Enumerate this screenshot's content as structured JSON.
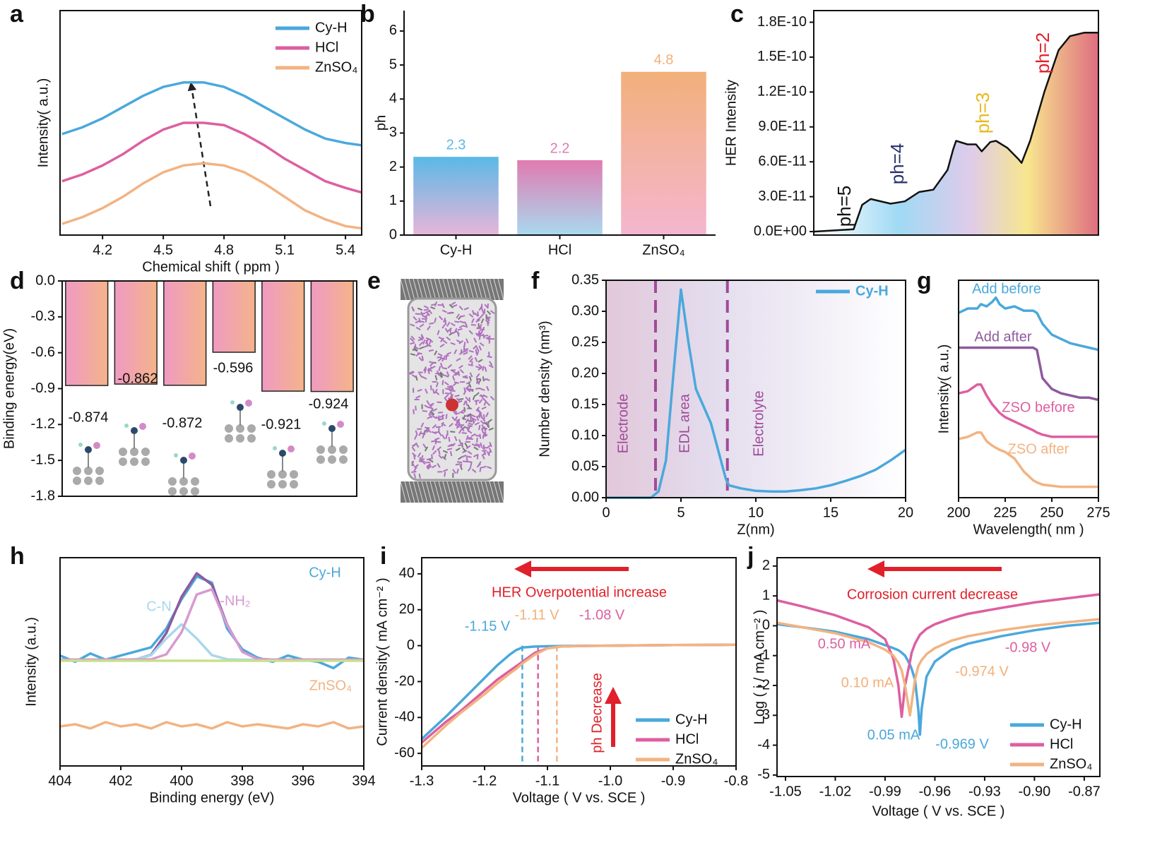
{
  "chart_data": [
    {
      "type": "line",
      "panel": "a",
      "xlabel": "Chemical shift ( ppm )",
      "ylabel": "Intensity( a.u.)",
      "xlim": [
        3.99,
        5.48
      ],
      "ylim": [
        0,
        1
      ],
      "xticks": [
        4.2,
        4.5,
        4.8,
        5.1,
        5.4
      ],
      "legend": "upper right",
      "x": [
        4.0,
        4.1,
        4.2,
        4.3,
        4.4,
        4.5,
        4.6,
        4.7,
        4.8,
        4.9,
        5.0,
        5.1,
        5.2,
        5.3,
        5.4,
        5.48
      ],
      "series": [
        {
          "name": "Cy-H",
          "color": "#4aa8dc",
          "values": [
            0.45,
            0.48,
            0.52,
            0.57,
            0.62,
            0.66,
            0.68,
            0.68,
            0.66,
            0.62,
            0.57,
            0.52,
            0.47,
            0.43,
            0.41,
            0.4
          ]
        },
        {
          "name": "HCl",
          "color": "#dd5fa0",
          "values": [
            0.24,
            0.27,
            0.31,
            0.36,
            0.42,
            0.47,
            0.5,
            0.5,
            0.49,
            0.45,
            0.4,
            0.34,
            0.29,
            0.24,
            0.21,
            0.19
          ]
        },
        {
          "name": "ZnSO₄",
          "color": "#f2b382",
          "values": [
            0.05,
            0.08,
            0.12,
            0.17,
            0.23,
            0.28,
            0.31,
            0.32,
            0.31,
            0.28,
            0.23,
            0.17,
            0.11,
            0.07,
            0.04,
            0.03
          ]
        }
      ]
    },
    {
      "type": "bar",
      "panel": "b",
      "ylabel": "ph",
      "categories": [
        "Cy-H",
        "HCl",
        "ZnSO₄"
      ],
      "values": [
        2.3,
        2.2,
        4.8
      ],
      "colors": [
        "#5bb8e6",
        "#e07bb0",
        "#f2b07a"
      ],
      "ylim": [
        0,
        6.6
      ],
      "yticks": [
        0,
        1,
        2,
        3,
        4,
        5,
        6
      ]
    },
    {
      "type": "area",
      "panel": "c",
      "ylabel": "HER Intensity",
      "xlim": [
        0,
        100
      ],
      "ylim": [
        -3e-12,
        1.9e-10
      ],
      "yticks": [
        {
          "value": 0,
          "label": "0.0E+00"
        },
        {
          "value": 3e-11,
          "label": "3.0E-11"
        },
        {
          "value": 6e-11,
          "label": "6.0E-11"
        },
        {
          "value": 9e-11,
          "label": "9.0E-11"
        },
        {
          "value": 1.2e-10,
          "label": "1.2E-10"
        },
        {
          "value": 1.5e-10,
          "label": "1.5E-10"
        },
        {
          "value": 1.8e-10,
          "label": "1.8E-10"
        }
      ],
      "x": [
        0,
        14,
        17,
        20,
        27,
        32,
        37,
        42,
        47,
        49,
        50,
        54,
        57,
        59,
        62,
        64,
        68,
        72,
        73,
        76,
        81,
        86,
        90,
        95,
        100
      ],
      "series": [
        {
          "color": "#111111",
          "values": [
            0,
            2e-12,
            2.3e-11,
            2.8e-11,
            2.4e-11,
            2.6e-11,
            3.4e-11,
            3.6e-11,
            5.3e-11,
            7.1e-11,
            7.8e-11,
            7.5e-11,
            7.5e-11,
            6.9e-11,
            7.7e-11,
            7.8e-11,
            7.2e-11,
            6.2e-11,
            5.9e-11,
            7.8e-11,
            1.2e-10,
            1.56e-10,
            1.68e-10,
            1.71e-10,
            1.71e-10
          ]
        }
      ],
      "annotations": [
        {
          "text": "ph=5",
          "color": "#111111"
        },
        {
          "text": "ph=4",
          "color": "#27306b"
        },
        {
          "text": "ph=3",
          "color": "#e8b81c"
        },
        {
          "text": "ph=2",
          "color": "#e0202a"
        }
      ]
    },
    {
      "type": "bar",
      "panel": "d",
      "ylabel": "Binding energy(eV)",
      "values": [
        -0.874,
        -0.862,
        -0.872,
        -0.596,
        -0.921,
        -0.924
      ],
      "gradient": [
        "#ef9ac2",
        "#f4b48a"
      ],
      "ylim": [
        -1.8,
        0
      ],
      "yticks": [
        {
          "value": 0,
          "label": "0.0"
        },
        -0.3,
        -0.6,
        -0.9,
        -1.2,
        -1.5,
        -1.8
      ]
    },
    {
      "type": "image",
      "panel": "e"
    },
    {
      "type": "line",
      "panel": "f",
      "xlabel": "Z(nm)",
      "ylabel": "Number density (nm³)",
      "xlim": [
        0,
        20
      ],
      "xticks": [
        0,
        5,
        10,
        15,
        20
      ],
      "ylim": [
        0,
        0.35
      ],
      "yticks": [
        {
          "value": 0,
          "label": "0.00"
        },
        0.05,
        {
          "value": 0.1,
          "label": "0.10"
        },
        0.15,
        {
          "value": 0.2,
          "label": "0.20"
        },
        0.25,
        {
          "value": 0.3,
          "label": "0.30"
        },
        0.35
      ],
      "legend": "upper right",
      "boundaries": [
        3.3,
        8.1
      ],
      "regions": [
        "Electrode",
        "EDL area",
        "Electrolyte"
      ],
      "x": [
        0,
        3,
        3.5,
        4,
        4.5,
        5,
        5.5,
        6,
        7,
        8,
        8.2,
        9,
        10,
        11,
        12,
        13,
        14,
        15,
        16,
        17,
        18,
        19,
        20
      ],
      "series": [
        {
          "name": "Cy-H",
          "color": "#4aa8dc",
          "values": [
            0,
            0,
            0.01,
            0.06,
            0.2,
            0.335,
            0.25,
            0.175,
            0.12,
            0.03,
            0.02,
            0.015,
            0.011,
            0.01,
            0.01,
            0.012,
            0.015,
            0.02,
            0.027,
            0.035,
            0.045,
            0.06,
            0.077
          ]
        }
      ]
    },
    {
      "type": "line",
      "panel": "g",
      "xlabel": "Wavelength( nm )",
      "ylabel": "Intensity( a.u.)",
      "xlim": [
        200,
        275
      ],
      "xticks": [
        200,
        225,
        250,
        275
      ],
      "ylim": [
        0,
        1
      ],
      "x": [
        200,
        205,
        210,
        212,
        215,
        218,
        220,
        222,
        225,
        230,
        235,
        240,
        242,
        245,
        250,
        255,
        260,
        265,
        270,
        275
      ],
      "series": [
        {
          "name": "Add before",
          "color": "#4aa8dc",
          "values": [
            0.85,
            0.87,
            0.87,
            0.89,
            0.88,
            0.9,
            0.92,
            0.89,
            0.87,
            0.88,
            0.86,
            0.86,
            0.85,
            0.8,
            0.75,
            0.73,
            0.71,
            0.7,
            0.69,
            0.68
          ]
        },
        {
          "name": "Add after",
          "color": "#8e5a9e",
          "values": [
            0.69,
            0.69,
            0.69,
            0.69,
            0.69,
            0.69,
            0.69,
            0.69,
            0.69,
            0.69,
            0.69,
            0.69,
            0.68,
            0.55,
            0.5,
            0.48,
            0.47,
            0.46,
            0.46,
            0.45
          ]
        },
        {
          "name": "ZSO before",
          "color": "#dd5fa0",
          "values": [
            0.48,
            0.49,
            0.52,
            0.52,
            0.47,
            0.43,
            0.41,
            0.39,
            0.37,
            0.35,
            0.33,
            0.31,
            0.3,
            0.29,
            0.28,
            0.28,
            0.28,
            0.28,
            0.28,
            0.28
          ]
        },
        {
          "name": "ZSO after",
          "color": "#f2b382",
          "values": [
            0.27,
            0.28,
            0.3,
            0.3,
            0.26,
            0.24,
            0.23,
            0.22,
            0.21,
            0.18,
            0.12,
            0.08,
            0.07,
            0.06,
            0.055,
            0.05,
            0.05,
            0.05,
            0.05,
            0.05
          ]
        }
      ]
    },
    {
      "type": "line",
      "panel": "h",
      "xlabel": "Binding energy (eV)",
      "ylabel": "Intensity (a.u.)",
      "xlim": [
        404,
        394
      ],
      "xticks": [
        404,
        402,
        400,
        398,
        396,
        394
      ],
      "ylim": [
        0,
        1
      ],
      "x": [
        404,
        403.5,
        403,
        402.5,
        402,
        401.5,
        401,
        400.5,
        400,
        399.5,
        399,
        398.5,
        398,
        397.5,
        397,
        396.5,
        396,
        395.5,
        395,
        394.5,
        394
      ],
      "series": [
        {
          "name": "Cy-H",
          "color": "#4aa8dc",
          "values": [
            0.53,
            0.5,
            0.54,
            0.51,
            0.53,
            0.55,
            0.57,
            0.66,
            0.8,
            0.91,
            0.88,
            0.66,
            0.56,
            0.52,
            0.5,
            0.53,
            0.51,
            0.5,
            0.47,
            0.52,
            0.51
          ]
        },
        {
          "color": "#8e5a9e",
          "values": [
            0.51,
            0.51,
            0.51,
            0.51,
            0.51,
            0.512,
            0.534,
            0.638,
            0.812,
            0.925,
            0.87,
            0.679,
            0.548,
            0.514,
            0.51,
            0.51,
            0.51,
            0.51,
            0.51,
            0.51,
            0.51
          ]
        },
        {
          "name": "C-N",
          "color": "#a8d8ea",
          "values": [
            0.51,
            0.51,
            0.51,
            0.51,
            0.51,
            0.512,
            0.532,
            0.612,
            0.68,
            0.612,
            0.532,
            0.512,
            0.51,
            0.51,
            0.51,
            0.51,
            0.51,
            0.51,
            0.51,
            0.51,
            0.51
          ]
        },
        {
          "name": "-NH₂",
          "color": "#d79ad0",
          "values": [
            0.51,
            0.51,
            0.51,
            0.51,
            0.51,
            0.51,
            0.512,
            0.536,
            0.642,
            0.823,
            0.848,
            0.677,
            0.548,
            0.514,
            0.51,
            0.51,
            0.51,
            0.51,
            0.51,
            0.51,
            0.51
          ]
        },
        {
          "color": "#c9e08a",
          "values": [
            0.505,
            0.505,
            0.505,
            0.505,
            0.505,
            0.505,
            0.505,
            0.505,
            0.505,
            0.505,
            0.505,
            0.505,
            0.505,
            0.505,
            0.505,
            0.505,
            0.505,
            0.505,
            0.505,
            0.505,
            0.505
          ]
        },
        {
          "name": "ZnSO₄",
          "color": "#f2b382",
          "values": [
            0.19,
            0.2,
            0.18,
            0.21,
            0.19,
            0.2,
            0.18,
            0.21,
            0.19,
            0.2,
            0.18,
            0.21,
            0.19,
            0.2,
            0.19,
            0.18,
            0.2,
            0.19,
            0.21,
            0.18,
            0.19
          ]
        }
      ]
    },
    {
      "type": "line",
      "panel": "i",
      "xlabel": "Voltage ( V vs. SCE )",
      "ylabel": "Current density( mA cm⁻² )",
      "xlim": [
        -1.3,
        -0.8
      ],
      "xticks": [
        -1.3,
        -1.2,
        -1.1,
        {
          "value": -1,
          "label": "-1.0"
        },
        -0.9,
        -0.8
      ],
      "ylim": [
        -67,
        49
      ],
      "yticks": [
        -60,
        -40,
        -20,
        0,
        20,
        40
      ],
      "legend": "lower right",
      "vlines": [
        -1.14,
        -1.115,
        -1.085
      ],
      "x": [
        -1.3,
        -1.28,
        -1.26,
        -1.24,
        -1.22,
        -1.2,
        -1.18,
        -1.16,
        -1.15,
        -1.14,
        -1.12,
        -1.1,
        -1.08,
        -1.05,
        -1,
        -0.9,
        -0.8
      ],
      "series": [
        {
          "name": "Cy-H",
          "color": "#4aa8dc",
          "values": [
            -52,
            -45.5,
            -39,
            -32,
            -25,
            -18,
            -11,
            -5,
            -2.5,
            -1,
            -0.5,
            -0.3,
            -0.2,
            -0.1,
            0,
            0.3,
            0.5
          ]
        },
        {
          "name": "HCl",
          "color": "#dd5fa0",
          "values": [
            -54,
            -48,
            -42,
            -37,
            -31,
            -25,
            -19,
            -14,
            -11.5,
            -9,
            -4,
            -1.5,
            -0.5,
            -0.2,
            0,
            0.3,
            0.5
          ]
        },
        {
          "name": "ZnSO₄",
          "color": "#f2b382",
          "values": [
            -57,
            -50.5,
            -44,
            -38,
            -32.5,
            -27,
            -21,
            -15.5,
            -13,
            -10,
            -5,
            -1.5,
            -0.5,
            -0.2,
            0,
            0.3,
            0.5
          ]
        }
      ],
      "annotations": [
        {
          "text": "HER Overpotential increase",
          "color": "#e0202a"
        },
        {
          "text": "ph Decrease",
          "color": "#e0202a"
        },
        {
          "text": "-1.15 V",
          "color": "#4aa8dc"
        },
        {
          "text": "-1.11 V",
          "color": "#f2b07a"
        },
        {
          "text": "-1.08 V",
          "color": "#dd5fa0"
        }
      ]
    },
    {
      "type": "line",
      "panel": "j",
      "xlabel": "Voltage ( V vs. SCE )",
      "ylabel": "Log ( i / mA cm⁻² )",
      "xlim": [
        -1.0551,
        -0.8606
      ],
      "xticks": [
        -1.05,
        -1.02,
        -0.99,
        -0.96,
        -0.93,
        {
          "value": -0.9,
          "label": "-0.90"
        },
        -0.87
      ],
      "ylim": [
        -5.05,
        2.28
      ],
      "yticks": [
        -5,
        -4,
        -3,
        -2,
        -1,
        0,
        1,
        2
      ],
      "legend": "lower right",
      "x": [
        -1.055,
        -1.04,
        -1.02,
        -1.0,
        -0.99,
        -0.985,
        -0.982,
        -0.98,
        -0.978,
        -0.975,
        -0.974,
        -0.972,
        -0.97,
        -0.969,
        -0.968,
        -0.965,
        -0.96,
        -0.95,
        -0.94,
        -0.92,
        -0.9,
        -0.88,
        -0.861
      ],
      "series": [
        {
          "name": "Cy-H",
          "color": "#4aa8dc",
          "values": [
            0.05,
            -0.05,
            -0.2,
            -0.45,
            -0.65,
            -0.75,
            -0.82,
            -0.9,
            -1.0,
            -1.3,
            -1.45,
            -1.8,
            -2.8,
            -3.65,
            -2.8,
            -1.7,
            -1.2,
            -0.8,
            -0.6,
            -0.35,
            -0.15,
            0.0,
            0.1
          ]
        },
        {
          "name": "HCl",
          "color": "#dd5fa0",
          "values": [
            0.85,
            0.65,
            0.35,
            -0.05,
            -0.45,
            -1.1,
            -2.0,
            -3.05,
            -2.0,
            -1.2,
            -0.9,
            -0.6,
            -0.4,
            -0.3,
            -0.25,
            -0.1,
            0.05,
            0.25,
            0.4,
            0.6,
            0.78,
            0.92,
            1.05
          ]
        },
        {
          "name": "ZnSO₄",
          "color": "#f2b382",
          "values": [
            0.1,
            -0.05,
            -0.25,
            -0.55,
            -0.8,
            -1.0,
            -1.25,
            -1.5,
            -2.0,
            -3.0,
            -2.6,
            -1.8,
            -1.35,
            -1.25,
            -1.15,
            -0.95,
            -0.75,
            -0.5,
            -0.35,
            -0.15,
            0.0,
            0.12,
            0.22
          ]
        }
      ],
      "annotations": [
        {
          "text": "Corrosion current decrease",
          "color": "#e0202a"
        },
        {
          "text": "0.50 mA",
          "color": "#dd5fa0"
        },
        {
          "text": "0.10 mA",
          "color": "#f2b07a"
        },
        {
          "text": "0.05 mA",
          "color": "#4aa8dc"
        },
        {
          "text": "-0.98 V",
          "color": "#dd5fa0"
        },
        {
          "text": "-0.974 V",
          "color": "#f2b07a"
        },
        {
          "text": "-0.969 V",
          "color": "#4aa8dc"
        }
      ]
    }
  ]
}
